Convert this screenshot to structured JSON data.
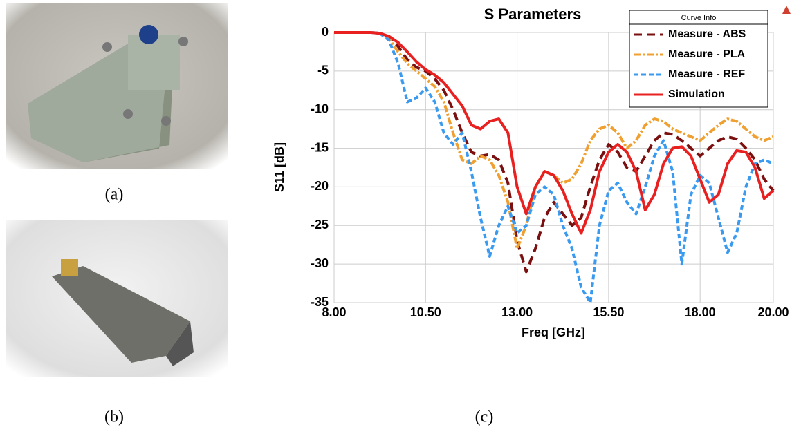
{
  "captions": [
    "(a)",
    "(b)",
    "(c)"
  ],
  "chart_data": {
    "type": "line",
    "title": "S Parameters",
    "xlabel": "Freq [GHz]",
    "ylabel": "S11 [dB]",
    "legend_title": "Curve Info",
    "grid": true,
    "legend": "upper right",
    "xlim": [
      8,
      20
    ],
    "ylim": [
      -35,
      0
    ],
    "xticks": [
      {
        "value": 8,
        "label": "8.00"
      },
      {
        "value": 10.5,
        "label": "10.50"
      },
      {
        "value": 13,
        "label": "13.00"
      },
      {
        "value": 15.5,
        "label": "15.50"
      },
      {
        "value": 18,
        "label": "18.00"
      },
      {
        "value": 20,
        "label": "20.00"
      }
    ],
    "yticks": [
      0,
      -5,
      -10,
      -15,
      -20,
      -25,
      -30,
      -35
    ],
    "x": [
      8,
      8.25,
      8.5,
      8.75,
      9,
      9.25,
      9.5,
      9.75,
      10,
      10.25,
      10.5,
      10.75,
      11,
      11.25,
      11.5,
      11.75,
      12,
      12.25,
      12.5,
      12.75,
      13,
      13.25,
      13.5,
      13.75,
      14,
      14.25,
      14.5,
      14.75,
      15,
      15.25,
      15.5,
      15.75,
      16,
      16.25,
      16.5,
      16.75,
      17,
      17.25,
      17.5,
      17.75,
      18,
      18.25,
      18.5,
      18.75,
      19,
      19.25,
      19.5,
      19.75,
      20
    ],
    "series": [
      {
        "name": "Measure - ABS",
        "color": "#7b1010",
        "dash": "12,7",
        "values": [
          0,
          0,
          0,
          0,
          0,
          -0.1,
          -0.6,
          -1.8,
          -3.5,
          -4.5,
          -5,
          -6,
          -7.5,
          -10,
          -13,
          -15.5,
          -16,
          -15.8,
          -16.5,
          -19.5,
          -27,
          -31,
          -28,
          -24,
          -22,
          -23.5,
          -25,
          -24,
          -20,
          -16.5,
          -14.5,
          -15.5,
          -17.5,
          -18,
          -16,
          -14,
          -13,
          -13.2,
          -14,
          -15,
          -16,
          -15,
          -14,
          -13.5,
          -13.8,
          -15,
          -16.5,
          -19,
          -20.5
        ]
      },
      {
        "name": "Measure - PLA",
        "color": "#f0a030",
        "dash": "10,3,3,3",
        "values": [
          0,
          0,
          0,
          0,
          0,
          -0.1,
          -0.8,
          -2.5,
          -4,
          -5,
          -6,
          -7,
          -9,
          -13,
          -16.5,
          -17,
          -16,
          -16.5,
          -18.5,
          -22,
          -28,
          -25,
          -20,
          -18,
          -18.5,
          -19.5,
          -19,
          -17,
          -14,
          -12.5,
          -12,
          -13,
          -15,
          -14,
          -12,
          -11.2,
          -11.5,
          -12.5,
          -13,
          -13.5,
          -14,
          -13,
          -12,
          -11.2,
          -11.5,
          -12.5,
          -13.5,
          -14,
          -13.5
        ]
      },
      {
        "name": "Measure - REF",
        "color": "#3a9af0",
        "dash": "7,4",
        "values": [
          0,
          0,
          0,
          0,
          0,
          -0.1,
          -1,
          -4,
          -9,
          -8.5,
          -7.2,
          -9,
          -13,
          -14.5,
          -13,
          -18,
          -24,
          -29,
          -25,
          -22.5,
          -26,
          -25,
          -21,
          -20,
          -21,
          -25,
          -28,
          -33,
          -35,
          -25,
          -20.5,
          -19.5,
          -22,
          -23.5,
          -20,
          -16,
          -14,
          -18,
          -30,
          -21,
          -18.5,
          -19.5,
          -24,
          -28.5,
          -26,
          -20,
          -17,
          -16.5,
          -17
        ]
      },
      {
        "name": "Simulation",
        "color": "#e82020",
        "dash": "",
        "values": [
          0,
          0,
          0,
          0,
          0,
          -0.1,
          -0.5,
          -1.3,
          -2.5,
          -3.8,
          -4.8,
          -5.5,
          -6.5,
          -8,
          -9.5,
          -12,
          -12.5,
          -11.5,
          -11.2,
          -13,
          -20,
          -23.5,
          -20,
          -18,
          -18.5,
          -20.5,
          -23.5,
          -26,
          -23,
          -18,
          -15.5,
          -14.5,
          -15.5,
          -18,
          -23,
          -21,
          -17,
          -15,
          -14.8,
          -16,
          -19,
          -22,
          -21,
          -17,
          -15.3,
          -15.5,
          -17.5,
          -21.5,
          -20.5
        ]
      }
    ]
  }
}
